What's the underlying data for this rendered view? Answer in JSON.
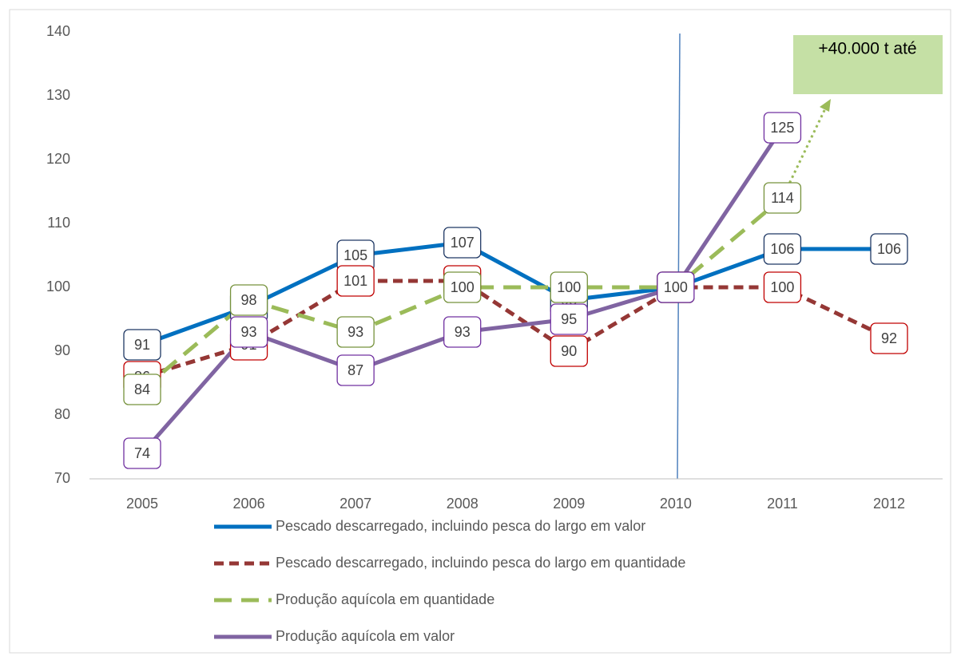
{
  "chart_data": {
    "type": "line",
    "categories": [
      "2005",
      "2006",
      "2007",
      "2008",
      "2009",
      "2010",
      "2011",
      "2012"
    ],
    "series": [
      {
        "name": "Pescado descarregado, incluindo pesca do largo  em valor",
        "color": "#0070c0",
        "label_color": "#1f3864",
        "dash": "solid",
        "values": [
          91,
          97,
          105,
          107,
          98,
          100,
          106,
          106
        ]
      },
      {
        "name": "Pescado descarregado, incluindo pesca do largo em quantidade",
        "color": "#953735",
        "label_color": "#c00000",
        "dash": "dashed",
        "values": [
          86,
          91,
          101,
          101,
          90,
          100,
          100,
          92
        ]
      },
      {
        "name": "Produção aquícola em quantidade",
        "color": "#9bbb59",
        "label_color": "#76923c",
        "dash": "longdash",
        "values": [
          84,
          98,
          93,
          100,
          100,
          100,
          114,
          null
        ]
      },
      {
        "name": "Produção aquícola em valor",
        "color": "#8064a2",
        "label_color": "#7030a0",
        "dash": "solid",
        "values": [
          74,
          93,
          87,
          93,
          95,
          100,
          125,
          null
        ]
      }
    ],
    "ylim": [
      70,
      140
    ],
    "yticks": [
      70,
      80,
      90,
      100,
      110,
      120,
      130,
      140
    ],
    "grid": false,
    "annotations": [
      "+40.000 t até"
    ]
  }
}
